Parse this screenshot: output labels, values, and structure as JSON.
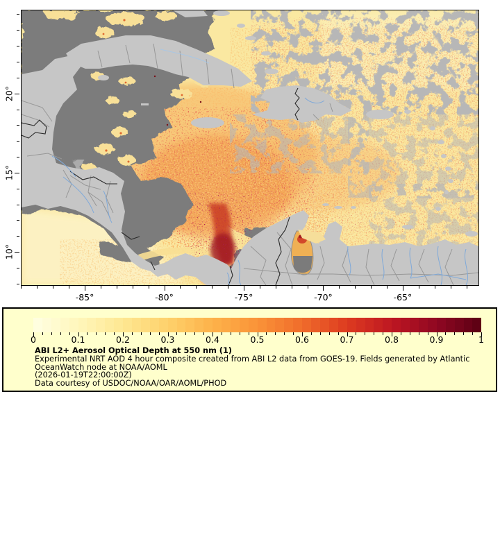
{
  "figure": {
    "background": "#ffffff"
  },
  "map": {
    "axes": {
      "lon": {
        "min": -89.02,
        "max": -60.28,
        "major": [
          -85,
          -80,
          -75,
          -70,
          -65
        ],
        "major_labels": [
          "-85°",
          "-80°",
          "-75°",
          "-70°",
          "-65°"
        ],
        "minor_step": 1
      },
      "lat": {
        "min": 7.95,
        "max": 25.28,
        "major": [
          20,
          15,
          10
        ],
        "major_labels": [
          "20°",
          "15°",
          "10°"
        ],
        "minor_step": 1
      }
    },
    "colors": {
      "ocean": "#FAE8A1",
      "nodata": "#7B7B7B",
      "land": "#C6C6C6",
      "admin": "#979797",
      "country": "#2a2a2a",
      "river": "#7FA9D9",
      "frame": "#000000",
      "plume_orange": "#F executes08438",
      "plume_red": "#C93A24",
      "plume_dark_red": "#8F0722"
    }
  },
  "legend": {
    "background": "#FFFFCC",
    "title": "ABI L2+ Aerosol Optical Depth at 550 nm (1)",
    "line1": "Experimental NRT AOD 4 hour composite created from ABI L2 data from GOES-19. Fields generated by Atlantic",
    "line2": "OceanWatch node at NOAA/AOML",
    "timestamp": "(2026-01-19T22:00:00Z)",
    "courtesy": "Data courtesy of USDOC/NOAA/OAR/AOML/PHOD",
    "colorbar": {
      "min": 0,
      "max": 1,
      "cells": 50,
      "tick_labels": [
        "0",
        "0.1",
        "0.2",
        "0.3",
        "0.4",
        "0.5",
        "0.6",
        "0.7",
        "0.8",
        "0.9",
        "1"
      ],
      "minor_tick_step": 0.02,
      "stops": [
        "#FFFFE3",
        "#FFF6BB",
        "#FEE792",
        "#FED16B",
        "#FDB24A",
        "#FA9338",
        "#F06C2B",
        "#DD3B20",
        "#BE1722",
        "#8F0722",
        "#5A0013"
      ]
    }
  },
  "chart_data": {
    "type": "heatmap",
    "title": "ABI L2+ Aerosol Optical Depth at 550 nm (1)",
    "variable": "Aerosol Optical Depth at 550 nm",
    "colorbar_range": [
      0,
      1
    ],
    "colorbar_ticks": [
      0,
      0.1,
      0.2,
      0.3,
      0.4,
      0.5,
      0.6,
      0.7,
      0.8,
      0.9,
      1
    ],
    "x_axis_ticks_deg_lon": [
      -85,
      -80,
      -75,
      -70,
      -65
    ],
    "y_axis_ticks_deg_lat": [
      20,
      15,
      10
    ],
    "region": "Caribbean Sea / Gulf of Mexico / northern South America",
    "notes": "Yellow-to-dark-red raster over ocean = AOD 0..1; dark gray = no data/cloud; light gray = land"
  }
}
